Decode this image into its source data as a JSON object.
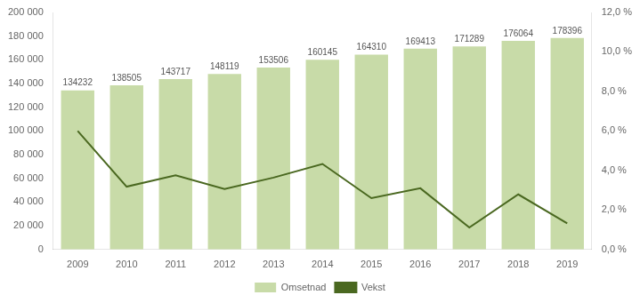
{
  "chart_data": {
    "type": "bar",
    "categories": [
      "2009",
      "2010",
      "2011",
      "2012",
      "2013",
      "2014",
      "2015",
      "2016",
      "2017",
      "2018",
      "2019"
    ],
    "series": [
      {
        "name": "Omsetnad",
        "type": "bar",
        "color": "#c8dba8",
        "data_labels": true,
        "values": [
          134232,
          138505,
          143717,
          148119,
          153506,
          160145,
          164310,
          169413,
          171289,
          176064,
          178396
        ]
      },
      {
        "name": "Vekst",
        "type": "line",
        "color": "#4a6820",
        "axis": "y2",
        "values": [
          0.06,
          0.0318,
          0.0376,
          0.0306,
          0.0364,
          0.0433,
          0.026,
          0.031,
          0.0111,
          0.0279,
          0.0132
        ]
      }
    ],
    "ylim": [
      0,
      200000
    ],
    "yticks": [
      0,
      {
        "value": 20000,
        "label": "20 000"
      },
      {
        "value": 40000,
        "label": "40 000"
      },
      {
        "value": 60000,
        "label": "60 000"
      },
      {
        "value": 80000,
        "label": "80 000"
      },
      {
        "value": 100000,
        "label": "100 000"
      },
      {
        "value": 120000,
        "label": "120 000"
      },
      {
        "value": 140000,
        "label": "140 000"
      },
      {
        "value": 160000,
        "label": "160 000"
      },
      {
        "value": 180000,
        "label": "180 000"
      },
      {
        "value": 200000,
        "label": "200 000"
      }
    ],
    "y2lim": [
      0,
      0.12
    ],
    "y2ticks": [
      {
        "value": 0.0,
        "label": "0,0 %"
      },
      {
        "value": 0.02,
        "label": "2,0 %"
      },
      {
        "value": 0.04,
        "label": "4,0 %"
      },
      {
        "value": 0.06,
        "label": "6,0 %"
      },
      {
        "value": 0.08,
        "label": "8,0 %"
      },
      {
        "value": 0.1,
        "label": "10,0 %"
      },
      {
        "value": 0.12,
        "label": "12,0 %"
      }
    ],
    "grid": false,
    "legend": "bottom"
  }
}
